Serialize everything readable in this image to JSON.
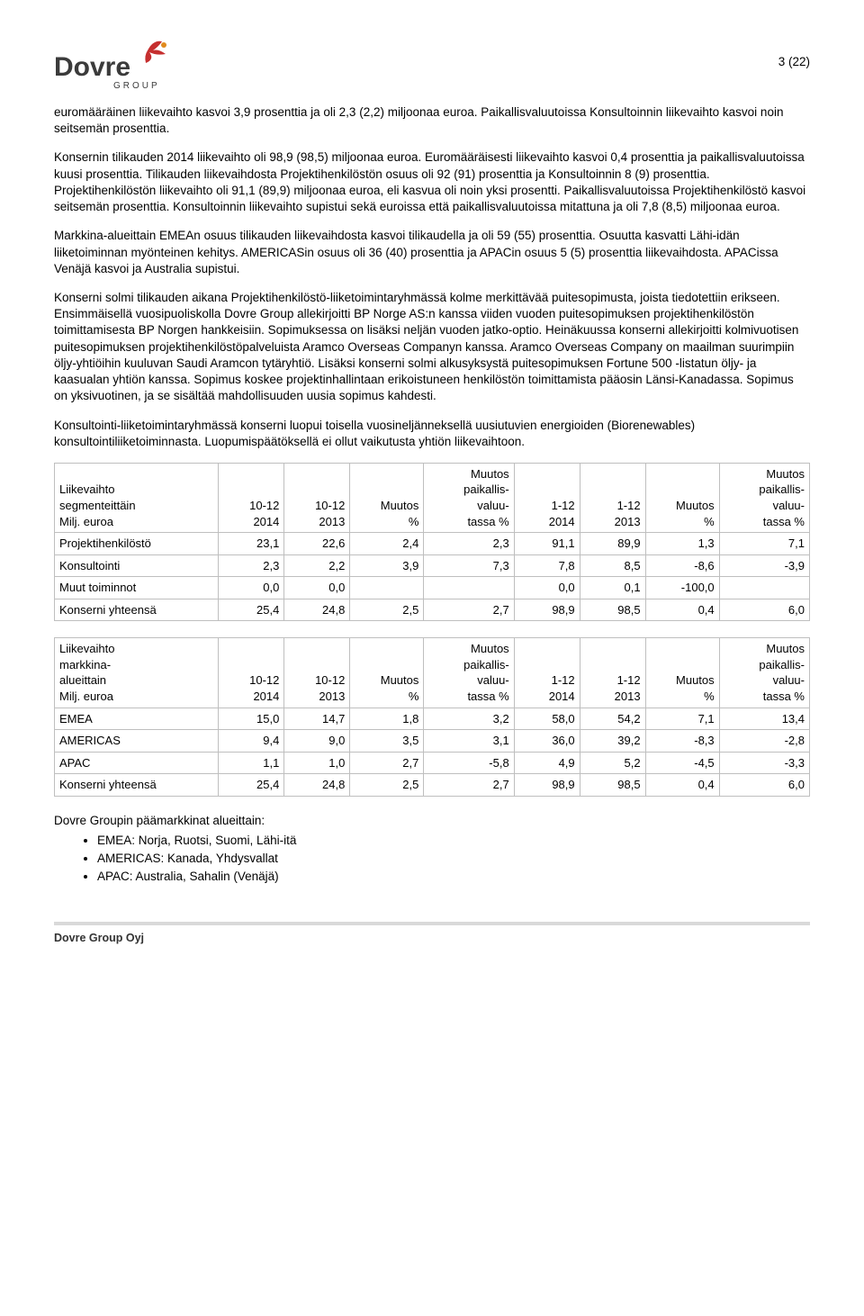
{
  "page_number": "3 (22)",
  "company_name": "Dovre Group Oyj",
  "logo": {
    "word": "Dovre",
    "sub": "G R O U P",
    "text_color": "#3b3b3b",
    "accent1": "#c62f2f",
    "accent2": "#e08a1e"
  },
  "paragraphs": {
    "p1": "euromääräinen liikevaihto kasvoi 3,9 prosenttia ja oli 2,3 (2,2) miljoonaa euroa. Paikallisvaluutoissa Konsultoinnin liikevaihto kasvoi noin seitsemän prosenttia.",
    "p2": "Konsernin tilikauden 2014 liikevaihto oli 98,9 (98,5) miljoonaa euroa. Euromääräisesti liikevaihto kasvoi 0,4 prosenttia ja paikallisvaluutoissa kuusi prosenttia. Tilikauden liikevaihdosta Projektihenkilöstön osuus oli 92 (91) prosenttia ja Konsultoinnin 8 (9) prosenttia. Projektihenkilöstön liikevaihto oli 91,1 (89,9) miljoonaa euroa, eli kasvua oli noin yksi prosentti. Paikallisvaluutoissa Projektihenkilöstö kasvoi seitsemän prosenttia. Konsultoinnin liikevaihto supistui sekä euroissa että paikallisvaluutoissa mitattuna ja oli 7,8 (8,5) miljoonaa euroa.",
    "p3": "Markkina-alueittain EMEAn osuus tilikauden liikevaihdosta kasvoi tilikaudella ja oli 59 (55) prosenttia. Osuutta kasvatti Lähi-idän liiketoiminnan myönteinen kehitys. AMERICASin osuus oli 36 (40) prosenttia ja APACin osuus 5 (5) prosenttia liikevaihdosta. APACissa Venäjä kasvoi ja Australia supistui.",
    "p4": "Konserni solmi tilikauden aikana Projektihenkilöstö-liiketoimintaryhmässä kolme merkittävää puitesopimusta, joista tiedotettiin erikseen. Ensimmäisellä vuosipuoliskolla Dovre Group allekirjoitti BP Norge AS:n kanssa viiden vuoden puitesopimuksen projektihenkilöstön toimittamisesta BP Norgen hankkeisiin. Sopimuksessa on lisäksi neljän vuoden jatko-optio. Heinäkuussa konserni allekirjoitti kolmivuotisen puitesopimuksen projektihenkilöstöpalveluista Aramco Overseas Companyn kanssa. Aramco Overseas Company on maailman suurimpiin öljy-yhtiöihin kuuluvan Saudi Aramcon tytäryhtiö. Lisäksi konserni solmi alkusyksystä puitesopimuksen Fortune 500 -listatun öljy- ja kaasualan yhtiön kanssa. Sopimus koskee projektinhallintaan erikoistuneen henkilöstön toimittamista pääosin Länsi-Kanadassa. Sopimus on yksivuotinen, ja se sisältää mahdollisuuden uusia sopimus kahdesti.",
    "p5": "Konsultointi-liiketoimintaryhmässä konserni luopui toisella vuosineljänneksellä uusiutuvien energioiden (Biorenewables) konsultointiliiketoiminnasta. Luopumispäätöksellä ei ollut vaikutusta yhtiön liikevaihtoon."
  },
  "table1": {
    "header_lines": {
      "c0l1": "Liikevaihto",
      "c0l2": "segmenteittäin",
      "c0l3": "Milj. euroa",
      "c1l1": "10-12",
      "c1l2": "2014",
      "c2l1": "10-12",
      "c2l2": "2013",
      "c3l1": "Muutos",
      "c3l2": "%",
      "c4l1": "Muutos",
      "c4l2": "paikallis-",
      "c4l3": "valuu-",
      "c4l4": "tassa %",
      "c5l1": "1-12",
      "c5l2": "2014",
      "c6l1": "1-12",
      "c6l2": "2013",
      "c7l1": "Muutos",
      "c7l2": "%",
      "c8l1": "Muutos",
      "c8l2": "paikallis-",
      "c8l3": "valuu-",
      "c8l4": "tassa %"
    },
    "rows": [
      {
        "label": "Projektihenkilöstö",
        "q1": "23,1",
        "q2": "22,6",
        "q3": "2,4",
        "q4": "2,3",
        "y1": "91,1",
        "y2": "89,9",
        "y3": "1,3",
        "y4": "7,1"
      },
      {
        "label": "Konsultointi",
        "q1": "2,3",
        "q2": "2,2",
        "q3": "3,9",
        "q4": "7,3",
        "y1": "7,8",
        "y2": "8,5",
        "y3": "-8,6",
        "y4": "-3,9"
      },
      {
        "label": "Muut toiminnot",
        "q1": "0,0",
        "q2": "0,0",
        "q3": "",
        "q4": "",
        "y1": "0,0",
        "y2": "0,1",
        "y3": "-100,0",
        "y4": ""
      },
      {
        "label": "Konserni yhteensä",
        "q1": "25,4",
        "q2": "24,8",
        "q3": "2,5",
        "q4": "2,7",
        "y1": "98,9",
        "y2": "98,5",
        "y3": "0,4",
        "y4": "6,0"
      }
    ]
  },
  "table2": {
    "header_lines": {
      "c0l1": "Liikevaihto",
      "c0l2": "markkina-",
      "c0l3": "alueittain",
      "c0l4": "Milj. euroa",
      "c1l1": "10-12",
      "c1l2": "2014",
      "c2l1": "10-12",
      "c2l2": "2013",
      "c3l1": "Muutos",
      "c3l2": "%",
      "c4l1": "Muutos",
      "c4l2": "paikallis-",
      "c4l3": "valuu-",
      "c4l4": "tassa %",
      "c5l1": "1-12",
      "c5l2": "2014",
      "c6l1": "1-12",
      "c6l2": "2013",
      "c7l1": "Muutos",
      "c7l2": "%",
      "c8l1": "Muutos",
      "c8l2": "paikallis-",
      "c8l3": "valuu-",
      "c8l4": "tassa %"
    },
    "rows": [
      {
        "label": "EMEA",
        "q1": "15,0",
        "q2": "14,7",
        "q3": "1,8",
        "q4": "3,2",
        "y1": "58,0",
        "y2": "54,2",
        "y3": "7,1",
        "y4": "13,4"
      },
      {
        "label": "AMERICAS",
        "q1": "9,4",
        "q2": "9,0",
        "q3": "3,5",
        "q4": "3,1",
        "y1": "36,0",
        "y2": "39,2",
        "y3": "-8,3",
        "y4": "-2,8"
      },
      {
        "label": "APAC",
        "q1": "1,1",
        "q2": "1,0",
        "q3": "2,7",
        "q4": "-5,8",
        "y1": "4,9",
        "y2": "5,2",
        "y3": "-4,5",
        "y4": "-3,3"
      },
      {
        "label": "Konserni yhteensä",
        "q1": "25,4",
        "q2": "24,8",
        "q3": "2,5",
        "q4": "2,7",
        "y1": "98,9",
        "y2": "98,5",
        "y3": "0,4",
        "y4": "6,0"
      }
    ]
  },
  "markets": {
    "heading": "Dovre Groupin päämarkkinat alueittain:",
    "items": [
      "EMEA: Norja, Ruotsi, Suomi, Lähi-itä",
      "AMERICAS: Kanada, Yhdysvallat",
      "APAC: Australia, Sahalin (Venäjä)"
    ]
  },
  "styling": {
    "border_color": "#bfbfbf",
    "font_family": "Arial",
    "body_font_size_pt": 10,
    "table_font_size_pt": 10
  }
}
